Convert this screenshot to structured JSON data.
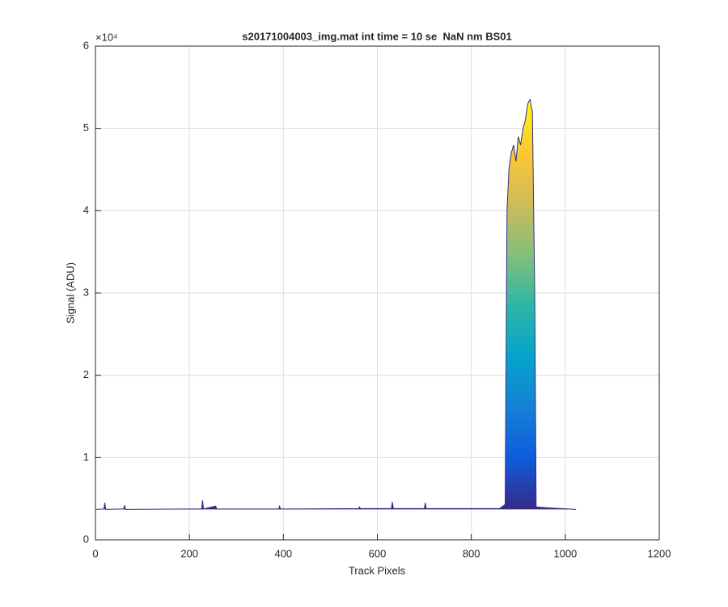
{
  "chart_data": {
    "type": "area",
    "title": "s20171004003_img.mat int time = 10 se  NaN nm BS01",
    "x_label": "Track Pixels",
    "y_label": "Signal (ADU)",
    "y_multiplier": "×10⁴",
    "xlim": [
      0,
      1200
    ],
    "ylim": [
      0,
      60000
    ],
    "xticks": [
      0,
      200,
      400,
      600,
      800,
      1000,
      1200
    ],
    "yticks": [
      {
        "value": 0,
        "label": "0"
      },
      {
        "value": 10000,
        "label": "1"
      },
      {
        "value": 20000,
        "label": "2"
      },
      {
        "value": 30000,
        "label": "3"
      },
      {
        "value": 40000,
        "label": "4"
      },
      {
        "value": 50000,
        "label": "5"
      },
      {
        "value": 60000,
        "label": "6"
      }
    ],
    "grid": true,
    "colormap": [
      "#352a87",
      "#0f5cdd",
      "#1481d6",
      "#06a4ca",
      "#2eb7a4",
      "#87bf77",
      "#d1bb59",
      "#fec832",
      "#f9fb0e"
    ],
    "x": [
      1,
      18,
      20,
      22,
      60,
      62,
      64,
      200,
      226,
      228,
      230,
      256,
      258,
      390,
      392,
      394,
      560,
      562,
      564,
      630,
      632,
      634,
      700,
      702,
      704,
      860,
      872,
      876,
      880,
      885,
      890,
      895,
      900,
      905,
      910,
      915,
      920,
      925,
      930,
      935,
      938,
      960,
      1023
    ],
    "values": [
      3700,
      3750,
      4500,
      3700,
      3750,
      4200,
      3700,
      3750,
      3750,
      4800,
      3750,
      4100,
      3750,
      3750,
      4100,
      3750,
      3800,
      4000,
      3800,
      3800,
      4600,
      3800,
      3800,
      4500,
      3800,
      3800,
      4300,
      40000,
      45000,
      47000,
      48000,
      46000,
      49000,
      48000,
      50000,
      51000,
      53000,
      53500,
      52000,
      30000,
      4000,
      3900,
      3700
    ]
  }
}
